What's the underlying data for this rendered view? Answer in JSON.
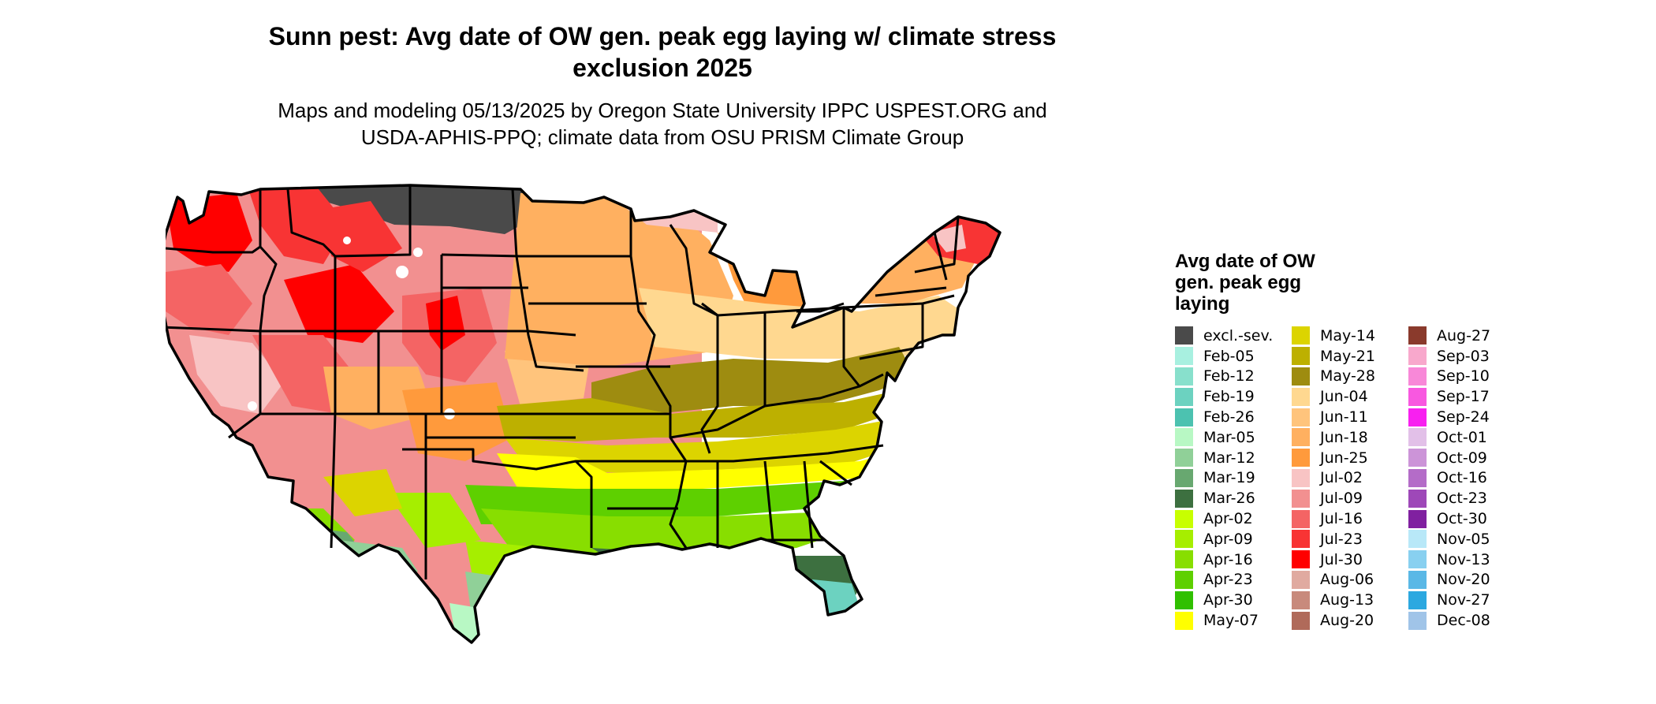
{
  "header": {
    "title_line1": "Sunn pest: Avg date of OW gen. peak egg laying w/ climate stress",
    "title_line2": "exclusion 2025",
    "subtitle_line1": "Maps and modeling 05/13/2025 by Oregon State University IPPC USPEST.ORG and",
    "subtitle_line2": "USDA-APHIS-PPQ; climate data from OSU PRISM Climate Group"
  },
  "legend": {
    "title_line1": "Avg date of OW",
    "title_line2": "gen. peak egg",
    "title_line3": "laying",
    "columns": [
      [
        {
          "label": "excl.-sev.",
          "color": "#4a4a4a"
        },
        {
          "label": "Feb-05",
          "color": "#a8f0e0"
        },
        {
          "label": "Feb-12",
          "color": "#88e0cc"
        },
        {
          "label": "Feb-19",
          "color": "#6cd2c0"
        },
        {
          "label": "Feb-26",
          "color": "#4cc2b0"
        },
        {
          "label": "Mar-05",
          "color": "#b8f8c4"
        },
        {
          "label": "Mar-12",
          "color": "#90d098"
        },
        {
          "label": "Mar-19",
          "color": "#68a870"
        },
        {
          "label": "Mar-26",
          "color": "#3d7040"
        },
        {
          "label": "Apr-02",
          "color": "#c8ff00"
        },
        {
          "label": "Apr-09",
          "color": "#a6ee00"
        },
        {
          "label": "Apr-16",
          "color": "#88de00"
        },
        {
          "label": "Apr-23",
          "color": "#5ed000"
        },
        {
          "label": "Apr-30",
          "color": "#30c000"
        },
        {
          "label": "May-07",
          "color": "#ffff00"
        }
      ],
      [
        {
          "label": "May-14",
          "color": "#dcd400"
        },
        {
          "label": "May-21",
          "color": "#bdb000"
        },
        {
          "label": "May-28",
          "color": "#9e8c10"
        },
        {
          "label": "Jun-04",
          "color": "#ffd890"
        },
        {
          "label": "Jun-11",
          "color": "#ffc47c"
        },
        {
          "label": "Jun-18",
          "color": "#ffb060"
        },
        {
          "label": "Jun-25",
          "color": "#ff9a3c"
        },
        {
          "label": "Jul-02",
          "color": "#f8c4c4"
        },
        {
          "label": "Jul-09",
          "color": "#f29090"
        },
        {
          "label": "Jul-16",
          "color": "#f46464"
        },
        {
          "label": "Jul-23",
          "color": "#f83434"
        },
        {
          "label": "Jul-30",
          "color": "#ff0000"
        },
        {
          "label": "Aug-06",
          "color": "#e0aaa0"
        },
        {
          "label": "Aug-13",
          "color": "#c88a7c"
        },
        {
          "label": "Aug-20",
          "color": "#b06a5a"
        }
      ],
      [
        {
          "label": "Aug-27",
          "color": "#8a3a2c"
        },
        {
          "label": "Sep-03",
          "color": "#f8a8cc"
        },
        {
          "label": "Sep-10",
          "color": "#f888d8"
        },
        {
          "label": "Sep-17",
          "color": "#f858e0"
        },
        {
          "label": "Sep-24",
          "color": "#f820f0"
        },
        {
          "label": "Oct-01",
          "color": "#e2c0e8"
        },
        {
          "label": "Oct-09",
          "color": "#cc94d8"
        },
        {
          "label": "Oct-16",
          "color": "#b46cc8"
        },
        {
          "label": "Oct-23",
          "color": "#9e48b8"
        },
        {
          "label": "Oct-30",
          "color": "#8020a0"
        },
        {
          "label": "Nov-05",
          "color": "#b8e8f8"
        },
        {
          "label": "Nov-13",
          "color": "#88d0f0"
        },
        {
          "label": "Nov-20",
          "color": "#5ab8e6"
        },
        {
          "label": "Nov-27",
          "color": "#2ca8e0"
        },
        {
          "label": "Dec-08",
          "color": "#a0c4e8"
        }
      ]
    ]
  }
}
